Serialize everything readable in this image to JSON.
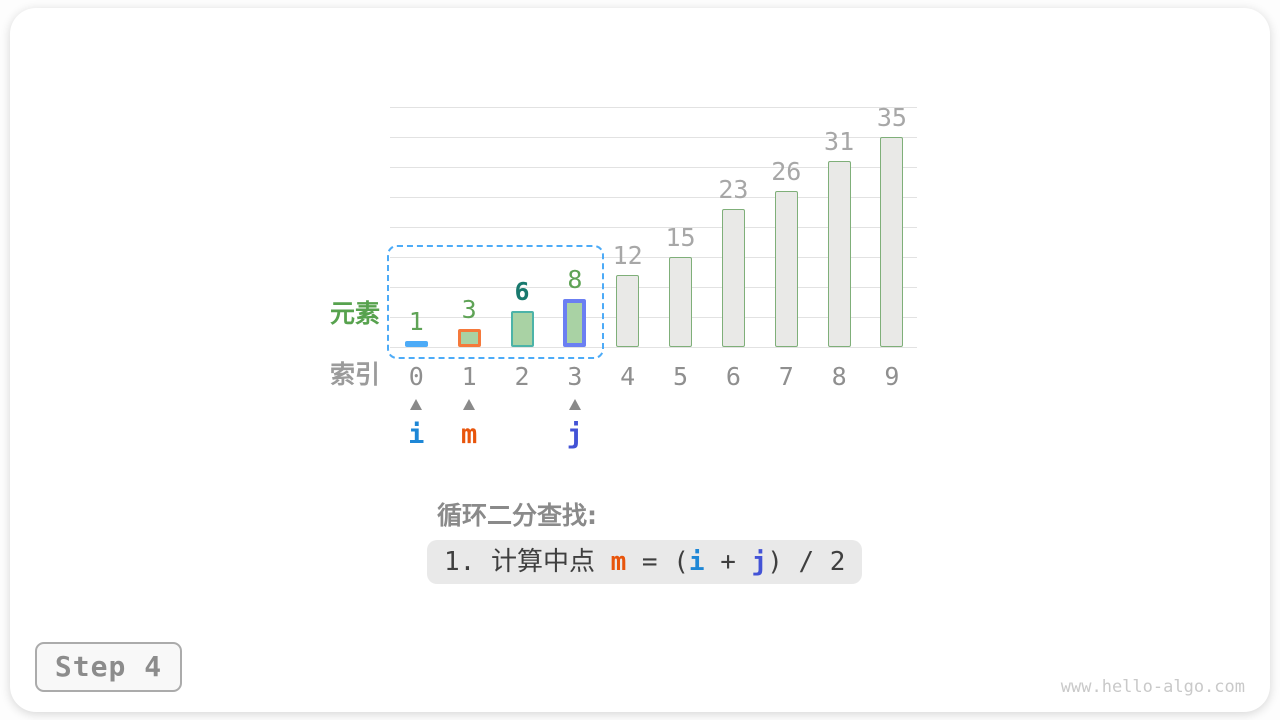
{
  "page": {
    "step_badge": "Step 4",
    "watermark": "www.hello-algo.com"
  },
  "row_labels": {
    "elements": "元素",
    "indices": "索引"
  },
  "caption": {
    "title": "循环二分查找:"
  },
  "step_formula": {
    "segments": [
      {
        "text": "1. 计算中点 ",
        "color": "#3f3f3f",
        "bold": false
      },
      {
        "text": "m",
        "color": "#e8550c",
        "bold": true
      },
      {
        "text": " = (",
        "color": "#3f3f3f",
        "bold": false
      },
      {
        "text": "i",
        "color": "#1e87d6",
        "bold": true
      },
      {
        "text": " + ",
        "color": "#3f3f3f",
        "bold": false
      },
      {
        "text": "j",
        "color": "#4353d6",
        "bold": true
      },
      {
        "text": ") / 2",
        "color": "#3f3f3f",
        "bold": false
      }
    ]
  },
  "chart_data": {
    "type": "bar",
    "title": "",
    "xlabel": "索引",
    "ylabel": "元素",
    "categories": [
      "0",
      "1",
      "2",
      "3",
      "4",
      "5",
      "6",
      "7",
      "8",
      "9"
    ],
    "values": [
      1,
      3,
      6,
      8,
      12,
      15,
      23,
      26,
      31,
      35
    ],
    "ylim": [
      0,
      40
    ],
    "gridline_step": 5,
    "grid": true,
    "legend_position": "none",
    "bars": [
      {
        "index": 0,
        "value": 1,
        "state": "i-pointer"
      },
      {
        "index": 1,
        "value": 3,
        "state": "m-pointer"
      },
      {
        "index": 2,
        "value": 6,
        "state": "target"
      },
      {
        "index": 3,
        "value": 8,
        "state": "j-pointer"
      },
      {
        "index": 4,
        "value": 12,
        "state": "inactive"
      },
      {
        "index": 5,
        "value": 15,
        "state": "inactive"
      },
      {
        "index": 6,
        "value": 23,
        "state": "inactive"
      },
      {
        "index": 7,
        "value": 26,
        "state": "inactive"
      },
      {
        "index": 8,
        "value": 31,
        "state": "inactive"
      },
      {
        "index": 9,
        "value": 35,
        "state": "inactive"
      },
      {
        "index": 10,
        "value": 0,
        "state": "__unused__"
      }
    ],
    "pointers": [
      {
        "index": 0,
        "label": "i",
        "color": "#1e87d6"
      },
      {
        "index": 1,
        "label": "m",
        "color": "#e8550c"
      },
      {
        "index": 3,
        "label": "j",
        "color": "#4353d6"
      }
    ],
    "search_range": {
      "from_index": 0,
      "to_index": 3
    }
  },
  "palette": {
    "search_range_dash": "#4dabf7",
    "element_label_green": "#57a24e",
    "index_label_gray": "#9b9b9b",
    "bar_styles": {
      "i-pointer": {
        "fill": "#a9d2a4",
        "border": "#4dabf7",
        "border_width": 3
      },
      "m-pointer": {
        "fill": "#a9d2a4",
        "border": "#f5793b",
        "border_width": 3
      },
      "target": {
        "fill": "#a9d2a4",
        "border": "#4cb3a8",
        "border_width": 2
      },
      "j-pointer": {
        "fill": "#a9d2a4",
        "border": "#6b7ff2",
        "border_width": 4
      },
      "inactive": {
        "fill": "#e9e9e7",
        "border": "#7faf79",
        "border_width": 1.5
      },
      "__unused__": {
        "fill": "transparent",
        "border": "transparent",
        "border_width": 0
      }
    },
    "value_label_colors": {
      "i-pointer": "#5fa356",
      "m-pointer": "#5fa356",
      "target": "#19796e",
      "j-pointer": "#5fa356",
      "inactive": "#a7a7a7",
      "__unused__": "transparent"
    }
  }
}
